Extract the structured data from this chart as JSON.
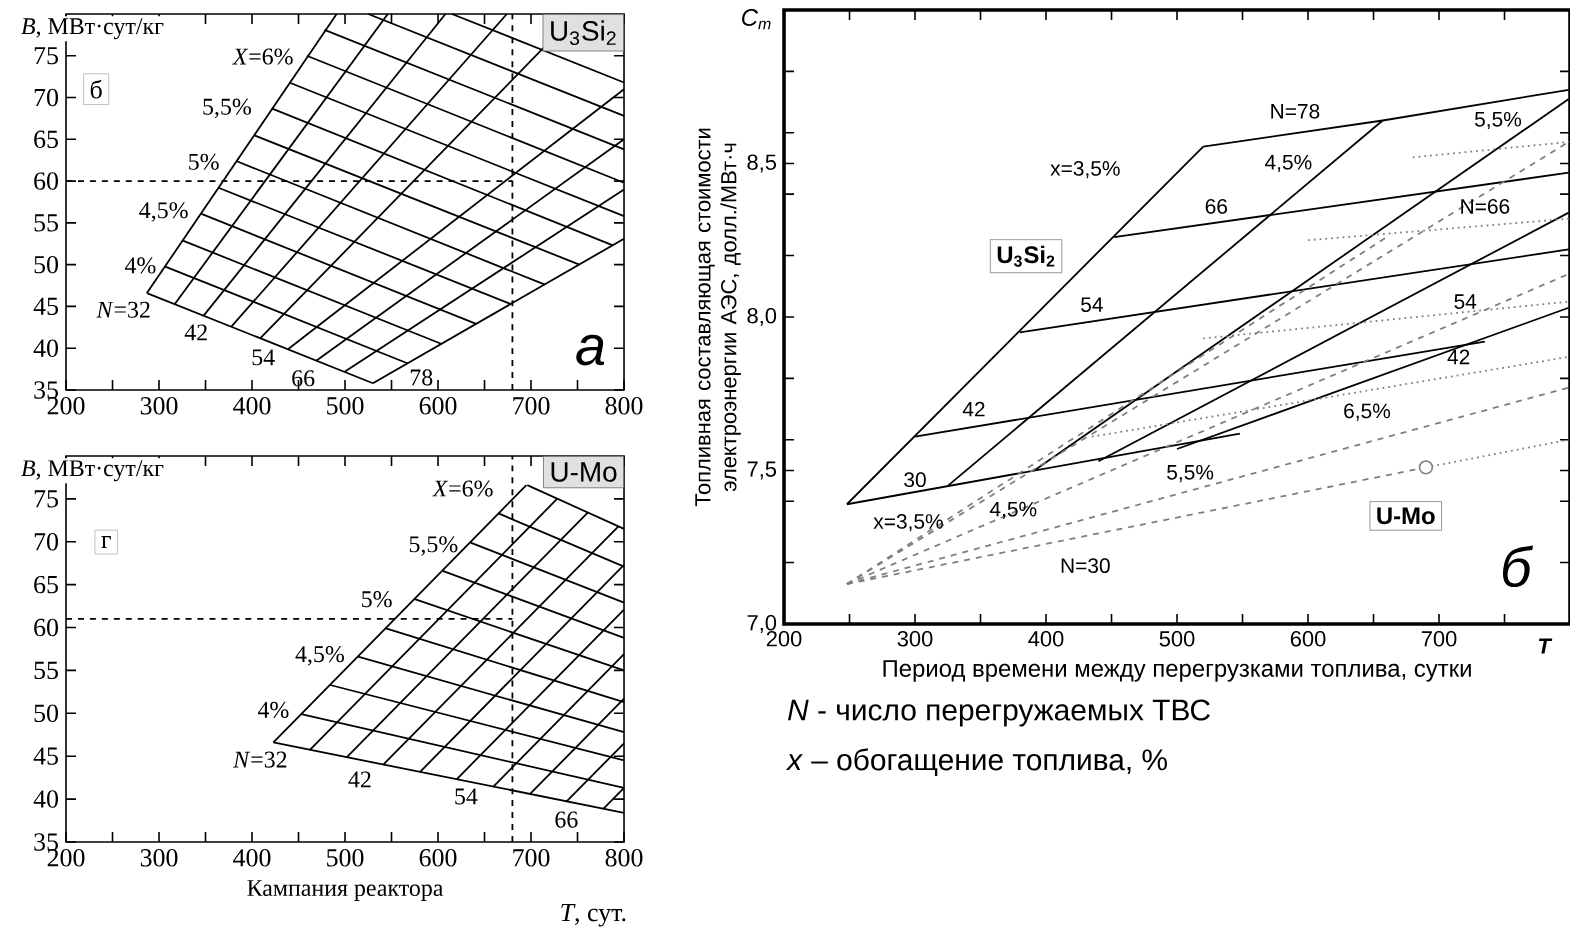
{
  "chart_data": [
    {
      "type": "line",
      "ylabel": "*B*, МВт·сут/кг",
      "xlim": [
        200,
        800
      ],
      "ylim": [
        35,
        80
      ],
      "xticks": [
        200,
        {
          "value": 250,
          "label": null
        },
        300,
        {
          "value": 350,
          "label": null
        },
        400,
        {
          "value": 450,
          "label": null
        },
        500,
        {
          "value": 550,
          "label": null
        },
        600,
        {
          "value": 650,
          "label": null
        },
        700,
        {
          "value": 750,
          "label": null
        },
        800
      ],
      "yticks": [
        35,
        40,
        45,
        50,
        55,
        60,
        65,
        70,
        75
      ],
      "series": [
        {
          "color": "#000000",
          "x": [
            287,
            491
          ],
          "values": [
            46.6,
            80
          ]
        },
        {
          "color": "#000000",
          "x": [
            317,
            546
          ],
          "values": [
            45.3,
            80
          ]
        },
        {
          "color": "#000000",
          "x": [
            348,
            608
          ],
          "values": [
            43.9,
            80
          ]
        },
        {
          "color": "#000000",
          "x": [
            378,
            674
          ],
          "values": [
            42.6,
            80
          ]
        },
        {
          "color": "#000000",
          "x": [
            409,
            749
          ],
          "values": [
            41.2,
            80
          ]
        },
        {
          "color": "#000000",
          "x": [
            439,
            800
          ],
          "values": [
            39.9,
            71
          ]
        },
        {
          "color": "#000000",
          "x": [
            469,
            800
          ],
          "values": [
            38.5,
            65
          ]
        },
        {
          "color": "#000000",
          "x": [
            500,
            800
          ],
          "values": [
            37.2,
            59
          ]
        },
        {
          "color": "#000000",
          "x": [
            530,
            800
          ],
          "values": [
            35.8,
            53.1
          ]
        },
        {
          "color": "#000000",
          "x": [
            287,
            530
          ],
          "values": [
            46.6,
            35.8
          ]
        },
        {
          "color": "#000000",
          "x": [
            306,
            567
          ],
          "values": [
            49.8,
            38.2
          ]
        },
        {
          "color": "#000000",
          "x": [
            325,
            604
          ],
          "values": [
            52.9,
            40.5
          ]
        },
        {
          "color": "#000000",
          "x": [
            345,
            641
          ],
          "values": [
            56.1,
            42.9
          ]
        },
        {
          "color": "#000000",
          "x": [
            364,
            678
          ],
          "values": [
            59.2,
            45.3
          ]
        },
        {
          "color": "#000000",
          "x": [
            383,
            715
          ],
          "values": [
            62.4,
            47.6
          ]
        },
        {
          "color": "#000000",
          "x": [
            402,
            752
          ],
          "values": [
            65.5,
            50.0
          ]
        },
        {
          "color": "#000000",
          "x": [
            421,
            788
          ],
          "values": [
            68.7,
            52.3
          ]
        },
        {
          "color": "#000000",
          "x": [
            440,
            800
          ],
          "values": [
            71.8,
            55.8
          ]
        },
        {
          "color": "#000000",
          "x": [
            459,
            800
          ],
          "values": [
            75.0,
            59.8
          ]
        },
        {
          "color": "#000000",
          "x": [
            478,
            800
          ],
          "values": [
            78.1,
            63.8
          ]
        },
        {
          "color": "#000000",
          "x": [
            525,
            800
          ],
          "values": [
            80,
            67.8
          ]
        },
        {
          "color": "#000000",
          "x": [
            615,
            800
          ],
          "values": [
            80,
            71.8
          ]
        },
        {
          "color": "#000000",
          "x": [
            200,
            680
          ],
          "values": [
            60,
            60
          ],
          "line_style": "dashed"
        }
      ],
      "ref_lines": [
        {
          "axis": "x",
          "value": 680,
          "line_style": "dashed",
          "color": "#000000"
        }
      ],
      "annotations": [
        "*X*=6%",
        "5,5%",
        "5%",
        "4,5%",
        "4%",
        "*N*=32",
        "42",
        "54",
        "66",
        "78",
        "U$_{3}$Si$_{2}$",
        "б",
        "а"
      ]
    },
    {
      "type": "line",
      "ylabel": "*B*, МВт·сут/кг",
      "xlabel": "Кампания реактора",
      "xlim": [
        200,
        800
      ],
      "ylim": [
        35,
        80
      ],
      "xticks": [
        200,
        {
          "value": 250,
          "label": null
        },
        300,
        {
          "value": 350,
          "label": null
        },
        400,
        {
          "value": 450,
          "label": null
        },
        500,
        {
          "value": 550,
          "label": null
        },
        600,
        {
          "value": 650,
          "label": null
        },
        700,
        {
          "value": 750,
          "label": null
        },
        800
      ],
      "yticks": [
        35,
        40,
        45,
        50,
        55,
        60,
        65,
        70,
        75
      ],
      "series": [
        {
          "color": "#000000",
          "x": [
            423,
            695
          ],
          "values": [
            46.6,
            76.6
          ]
        },
        {
          "color": "#000000",
          "x": [
            462,
            728
          ],
          "values": [
            45.7,
            75.0
          ]
        },
        {
          "color": "#000000",
          "x": [
            502,
            761
          ],
          "values": [
            44.9,
            73.4
          ]
        },
        {
          "color": "#000000",
          "x": [
            541,
            794
          ],
          "values": [
            44.0,
            71.8
          ]
        },
        {
          "color": "#000000",
          "x": [
            581,
            800
          ],
          "values": [
            43.2,
            67.3
          ]
        },
        {
          "color": "#000000",
          "x": [
            620,
            800
          ],
          "values": [
            42.3,
            62.1
          ]
        },
        {
          "color": "#000000",
          "x": [
            659,
            800
          ],
          "values": [
            41.4,
            56.9
          ]
        },
        {
          "color": "#000000",
          "x": [
            699,
            800
          ],
          "values": [
            40.6,
            51.7
          ]
        },
        {
          "color": "#000000",
          "x": [
            738,
            800
          ],
          "values": [
            39.7,
            46.5
          ]
        },
        {
          "color": "#000000",
          "x": [
            778,
            800
          ],
          "values": [
            38.9,
            41.3
          ]
        },
        {
          "color": "#000000",
          "x": [
            423,
            800
          ],
          "values": [
            46.6,
            38.4
          ]
        },
        {
          "color": "#000000",
          "x": [
            453,
            800
          ],
          "values": [
            49.9,
            41.3
          ]
        },
        {
          "color": "#000000",
          "x": [
            484,
            800
          ],
          "values": [
            53.3,
            44.5
          ]
        },
        {
          "color": "#000000",
          "x": [
            514,
            800
          ],
          "values": [
            56.6,
            47.8
          ]
        },
        {
          "color": "#000000",
          "x": [
            544,
            800
          ],
          "values": [
            59.9,
            51.3
          ]
        },
        {
          "color": "#000000",
          "x": [
            575,
            800
          ],
          "values": [
            63.3,
            55.0
          ]
        },
        {
          "color": "#000000",
          "x": [
            605,
            800
          ],
          "values": [
            66.6,
            58.8
          ]
        },
        {
          "color": "#000000",
          "x": [
            635,
            800
          ],
          "values": [
            69.9,
            62.9
          ]
        },
        {
          "color": "#000000",
          "x": [
            665,
            800
          ],
          "values": [
            73.3,
            67.1
          ]
        },
        {
          "color": "#000000",
          "x": [
            696,
            800
          ],
          "values": [
            76.6,
            71.5
          ]
        },
        {
          "color": "#000000",
          "x": [
            200,
            680
          ],
          "values": [
            61,
            61
          ],
          "line_style": "dashed"
        }
      ],
      "ref_lines": [
        {
          "axis": "x",
          "value": 680,
          "line_style": "dashed",
          "color": "#000000"
        }
      ],
      "annotations": [
        "*X*=6%",
        "5,5%",
        "5%",
        "4,5%",
        "4%",
        "*N*=32",
        "42",
        "54",
        "66",
        "U-Mo",
        "г",
        "*T*, сут."
      ]
    },
    {
      "type": "line",
      "ylabel": "Топливная составляющая стоимости электроэнергии АЭС, долл./МВт·ч",
      "xlabel": "Период времени между перегрузками топлива, сутки",
      "xlim": [
        200,
        800
      ],
      "ylim": [
        7,
        9
      ],
      "xticks": [
        200,
        {
          "value": 250,
          "label": null
        },
        300,
        {
          "value": 350,
          "label": null
        },
        400,
        {
          "value": 450,
          "label": null
        },
        500,
        {
          "value": 550,
          "label": null
        },
        600,
        {
          "value": 650,
          "label": null
        },
        700,
        {
          "value": 750,
          "label": null
        }
      ],
      "yticks": [
        {
          "value": 7,
          "label": "7,0"
        },
        {
          "value": 7.2,
          "label": null
        },
        {
          "value": 7.4,
          "label": null
        },
        {
          "value": 7.5,
          "label": "7,5"
        },
        {
          "value": 7.6,
          "label": null
        },
        {
          "value": 7.8,
          "label": null
        },
        {
          "value": 8,
          "label": "8,0"
        },
        {
          "value": 8.2,
          "label": null
        },
        {
          "value": 8.4,
          "label": null
        },
        {
          "value": 8.5,
          "label": "8,5"
        },
        {
          "value": 8.6,
          "label": null
        },
        {
          "value": 8.8,
          "label": null
        }
      ],
      "series": [
        {
          "color": "#000000",
          "x": [
            248,
            548
          ],
          "values": [
            7.39,
            7.62
          ]
        },
        {
          "color": "#000000",
          "x": [
            300,
            735
          ],
          "values": [
            7.61,
            7.92
          ]
        },
        {
          "color": "#000000",
          "x": [
            380,
            799
          ],
          "values": [
            7.95,
            8.22
          ]
        },
        {
          "color": "#000000",
          "x": [
            452,
            799
          ],
          "values": [
            8.26,
            8.47
          ]
        },
        {
          "color": "#000000",
          "x": [
            520,
            657,
            799
          ],
          "values": [
            8.555,
            8.64,
            8.74
          ]
        },
        {
          "color": "#000000",
          "x": [
            248,
            520
          ],
          "values": [
            7.39,
            8.555
          ]
        },
        {
          "color": "#000000",
          "x": [
            325,
            657
          ],
          "values": [
            7.45,
            8.64
          ]
        },
        {
          "color": "#000000",
          "x": [
            391,
            799
          ],
          "values": [
            7.5,
            8.71
          ]
        },
        {
          "color": "#000000",
          "x": [
            440,
            799
          ],
          "values": [
            7.53,
            8.34
          ]
        },
        {
          "color": "#000000",
          "x": [
            500,
            799
          ],
          "values": [
            7.57,
            8.03
          ]
        },
        {
          "color": "#7f7f7f",
          "x": [
            248,
            660
          ],
          "values": [
            7.13,
            8.26
          ],
          "line_style": "dashed"
        },
        {
          "color": "#7f7f7f",
          "x": [
            248,
            799
          ],
          "values": [
            7.13,
            8.57
          ],
          "line_style": "dashed"
        },
        {
          "color": "#7f7f7f",
          "x": [
            248,
            799
          ],
          "values": [
            7.13,
            8.14
          ],
          "line_style": "dashed"
        },
        {
          "color": "#7f7f7f",
          "x": [
            248,
            799
          ],
          "values": [
            7.13,
            7.77
          ],
          "line_style": "dashed"
        },
        {
          "color": "#7f7f7f",
          "x": [
            248,
            690
          ],
          "values": [
            7.13,
            7.51
          ],
          "line_style": "dashed"
        },
        {
          "color": "#7f7f7f",
          "x": [
            690,
            799
          ],
          "values": [
            7.51,
            7.6
          ],
          "line_style": "dotted"
        },
        {
          "color": "#7f7f7f",
          "x": [
            435,
            799
          ],
          "values": [
            7.61,
            7.87
          ],
          "line_style": "dotted"
        },
        {
          "color": "#7f7f7f",
          "x": [
            520,
            799
          ],
          "values": [
            7.93,
            8.05
          ],
          "line_style": "dotted"
        },
        {
          "color": "#7f7f7f",
          "x": [
            600,
            799
          ],
          "values": [
            8.25,
            8.32
          ],
          "line_style": "dotted"
        },
        {
          "color": "#7f7f7f",
          "x": [
            680,
            799
          ],
          "values": [
            8.52,
            8.57
          ],
          "line_style": "dotted"
        },
        {
          "type": "scatter",
          "color": "#7f7f7f",
          "x": [
            690
          ],
          "values": [
            7.51
          ]
        }
      ],
      "annotations": [
        "N=78",
        "66",
        "54",
        "42",
        "30",
        "x=3,5%",
        "4,5%",
        "5,5%",
        "N=66",
        "54",
        "42",
        "6,5%",
        "x=3,5%",
        "4,5%",
        "5,5%",
        "N=30",
        "C$_{т}$",
        "U$_{3}$Si$_{2}$",
        "U-Mo",
        "б",
        "T",
        "*N* -  число перегружаемых ТВС",
        "*x* – обогащение топлива, %"
      ]
    }
  ]
}
